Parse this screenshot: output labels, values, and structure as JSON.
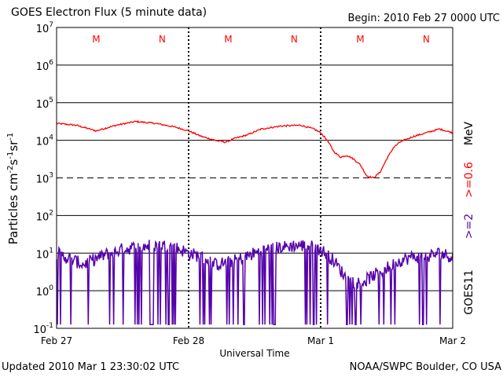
{
  "header": {
    "title": "GOES Electron Flux (5 minute data)",
    "begin": "Begin: 2010 Feb 27 0000 UTC"
  },
  "footer": {
    "updated": "Updated 2010 Mar  1 23:30:02 UTC",
    "credit": "NOAA/SWPC Boulder, CO USA"
  },
  "colors": {
    "high_energy": "#ff0000",
    "low_energy": "#5500aa",
    "satellite": "#000000",
    "marker_text": "#ff0000"
  },
  "chart_data": {
    "type": "line",
    "title": "GOES Electron Flux (5 minute data)",
    "xlabel": "Universal Time",
    "ylabel": "Particles cm-2s-1sr-1",
    "y_scale": "log",
    "ylim_exponent": [
      -1,
      7
    ],
    "y_ticks": [
      {
        "base": "10",
        "exp": "-1"
      },
      {
        "base": "10",
        "exp": "0"
      },
      {
        "base": "10",
        "exp": "1"
      },
      {
        "base": "10",
        "exp": "2"
      },
      {
        "base": "10",
        "exp": "3"
      },
      {
        "base": "10",
        "exp": "4"
      },
      {
        "base": "10",
        "exp": "5"
      },
      {
        "base": "10",
        "exp": "6"
      },
      {
        "base": "10",
        "exp": "7"
      }
    ],
    "threshold_exponent": 3,
    "x_days": 3,
    "x_ticks": [
      "Feb 27",
      "Feb 28",
      "Mar 1",
      "Mar 2"
    ],
    "noon_markers": [
      "M",
      "M",
      "M"
    ],
    "midnight_markers": [
      "N",
      "N",
      "N"
    ],
    "marker_positions_day": [
      0.3,
      0.8
    ],
    "right_labels": {
      "ge2": ">=2",
      "ge06": ">=0.6",
      "unit": "MeV",
      "satellite": "GOES11"
    },
    "series": [
      {
        "name": ">=0.6 MeV",
        "color": "#ff0000",
        "x_day": [
          0,
          0.15,
          0.3,
          0.45,
          0.6,
          0.75,
          0.9,
          1.0,
          1.1,
          1.2,
          1.28,
          1.35,
          1.45,
          1.55,
          1.7,
          1.85,
          1.95,
          2.0,
          2.05,
          2.1,
          2.15,
          2.2,
          2.25,
          2.3,
          2.35,
          2.4,
          2.45,
          2.5,
          2.55,
          2.6,
          2.7,
          2.8,
          2.9,
          3.0
        ],
        "log10": [
          4.45,
          4.4,
          4.25,
          4.4,
          4.5,
          4.45,
          4.35,
          4.25,
          4.1,
          4.0,
          3.95,
          4.05,
          4.15,
          4.3,
          4.38,
          4.4,
          4.3,
          4.2,
          4.0,
          3.7,
          3.55,
          3.6,
          3.5,
          3.35,
          3.05,
          3.0,
          3.15,
          3.5,
          3.8,
          3.95,
          4.1,
          4.2,
          4.3,
          4.2
        ]
      },
      {
        "name": ">=2 MeV",
        "color": "#5500aa",
        "x_day": [
          0,
          0.1,
          0.2,
          0.3,
          0.4,
          0.5,
          0.6,
          0.7,
          0.8,
          0.9,
          1.0,
          1.1,
          1.2,
          1.3,
          1.4,
          1.5,
          1.6,
          1.7,
          1.8,
          1.9,
          2.0,
          2.1,
          2.2,
          2.3,
          2.4,
          2.5,
          2.6,
          2.7,
          2.8,
          2.9,
          3.0
        ],
        "log10": [
          1.0,
          0.85,
          0.7,
          0.85,
          1.0,
          1.1,
          1.15,
          1.2,
          1.2,
          1.15,
          1.0,
          0.9,
          0.7,
          0.75,
          0.85,
          1.0,
          1.1,
          1.15,
          1.2,
          1.2,
          1.1,
          0.8,
          0.3,
          0.2,
          0.4,
          0.6,
          0.8,
          0.9,
          0.9,
          1.0,
          0.9
        ],
        "dip_to_log10": -0.9
      }
    ]
  }
}
